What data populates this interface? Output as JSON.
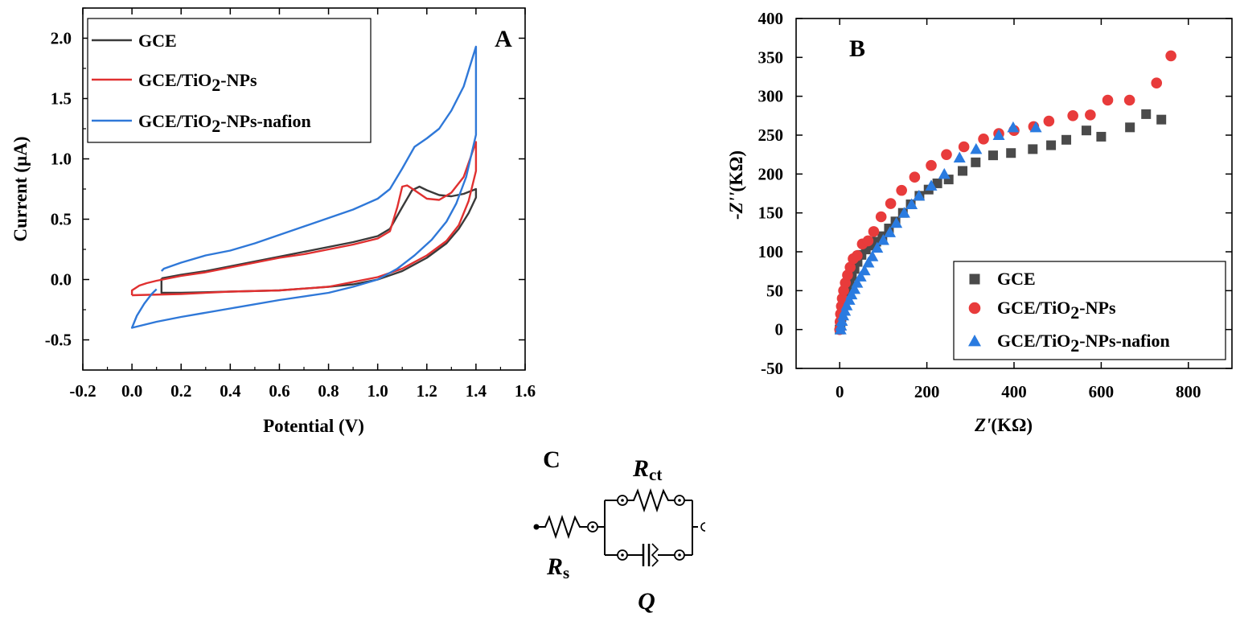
{
  "chart_data": [
    {
      "id": "A",
      "type": "line",
      "panel_label": "A",
      "xlabel": "Potential (V)",
      "ylabel": "Current (µA)",
      "xlim": [
        -0.2,
        1.6
      ],
      "ylim": [
        -0.75,
        2.25
      ],
      "xticks": [
        "-0.2",
        "0.0",
        "0.2",
        "0.4",
        "0.6",
        "0.8",
        "1.0",
        "1.2",
        "1.4",
        "1.6"
      ],
      "yticks": [
        "-0.5",
        "0.0",
        "0.5",
        "1.0",
        "1.5",
        "2.0"
      ],
      "legend_position": "top-left",
      "series": [
        {
          "name": "GCE",
          "color": "#3a3a3a",
          "points": [
            [
              0.12,
              0.01
            ],
            [
              0.2,
              0.04
            ],
            [
              0.3,
              0.07
            ],
            [
              0.4,
              0.11
            ],
            [
              0.5,
              0.15
            ],
            [
              0.6,
              0.19
            ],
            [
              0.7,
              0.23
            ],
            [
              0.8,
              0.27
            ],
            [
              0.9,
              0.31
            ],
            [
              1.0,
              0.36
            ],
            [
              1.05,
              0.42
            ],
            [
              1.1,
              0.6
            ],
            [
              1.14,
              0.74
            ],
            [
              1.17,
              0.77
            ],
            [
              1.2,
              0.74
            ],
            [
              1.25,
              0.7
            ],
            [
              1.3,
              0.69
            ],
            [
              1.35,
              0.71
            ],
            [
              1.4,
              0.75
            ],
            [
              1.4,
              0.68
            ],
            [
              1.37,
              0.55
            ],
            [
              1.33,
              0.42
            ],
            [
              1.28,
              0.3
            ],
            [
              1.2,
              0.18
            ],
            [
              1.1,
              0.07
            ],
            [
              1.0,
              0.0
            ],
            [
              0.9,
              -0.04
            ],
            [
              0.8,
              -0.06
            ],
            [
              0.6,
              -0.09
            ],
            [
              0.4,
              -0.1
            ],
            [
              0.2,
              -0.11
            ],
            [
              0.12,
              -0.11
            ],
            [
              0.12,
              0.01
            ]
          ]
        },
        {
          "name": "GCE/TiO2-NPs",
          "color": "#e03030",
          "points": [
            [
              0.0,
              -0.13
            ],
            [
              0.0,
              -0.09
            ],
            [
              0.03,
              -0.05
            ],
            [
              0.06,
              -0.03
            ],
            [
              0.1,
              -0.01
            ],
            [
              0.2,
              0.03
            ],
            [
              0.3,
              0.06
            ],
            [
              0.4,
              0.1
            ],
            [
              0.5,
              0.14
            ],
            [
              0.6,
              0.18
            ],
            [
              0.7,
              0.21
            ],
            [
              0.8,
              0.25
            ],
            [
              0.9,
              0.29
            ],
            [
              1.0,
              0.34
            ],
            [
              1.05,
              0.4
            ],
            [
              1.08,
              0.6
            ],
            [
              1.1,
              0.77
            ],
            [
              1.12,
              0.78
            ],
            [
              1.15,
              0.74
            ],
            [
              1.2,
              0.67
            ],
            [
              1.25,
              0.66
            ],
            [
              1.3,
              0.72
            ],
            [
              1.35,
              0.85
            ],
            [
              1.4,
              1.14
            ],
            [
              1.4,
              0.9
            ],
            [
              1.37,
              0.65
            ],
            [
              1.33,
              0.45
            ],
            [
              1.28,
              0.32
            ],
            [
              1.2,
              0.2
            ],
            [
              1.1,
              0.09
            ],
            [
              1.0,
              0.02
            ],
            [
              0.9,
              -0.02
            ],
            [
              0.8,
              -0.06
            ],
            [
              0.6,
              -0.09
            ],
            [
              0.4,
              -0.1
            ],
            [
              0.2,
              -0.12
            ],
            [
              0.0,
              -0.13
            ]
          ]
        },
        {
          "name": "GCE/TiO2-NPs-nafion",
          "color": "#2f78d8",
          "points": [
            [
              0.12,
              0.07
            ],
            [
              0.13,
              0.09
            ],
            [
              0.2,
              0.14
            ],
            [
              0.3,
              0.2
            ],
            [
              0.4,
              0.24
            ],
            [
              0.5,
              0.3
            ],
            [
              0.6,
              0.37
            ],
            [
              0.7,
              0.44
            ],
            [
              0.8,
              0.51
            ],
            [
              0.9,
              0.58
            ],
            [
              1.0,
              0.67
            ],
            [
              1.05,
              0.75
            ],
            [
              1.1,
              0.92
            ],
            [
              1.15,
              1.1
            ],
            [
              1.2,
              1.17
            ],
            [
              1.25,
              1.25
            ],
            [
              1.3,
              1.4
            ],
            [
              1.35,
              1.6
            ],
            [
              1.4,
              1.93
            ],
            [
              1.4,
              1.2
            ],
            [
              1.36,
              0.85
            ],
            [
              1.32,
              0.63
            ],
            [
              1.28,
              0.48
            ],
            [
              1.22,
              0.33
            ],
            [
              1.15,
              0.2
            ],
            [
              1.08,
              0.09
            ],
            [
              1.0,
              0.0
            ],
            [
              0.9,
              -0.06
            ],
            [
              0.8,
              -0.11
            ],
            [
              0.6,
              -0.17
            ],
            [
              0.4,
              -0.24
            ],
            [
              0.2,
              -0.31
            ],
            [
              0.1,
              -0.35
            ],
            [
              0.0,
              -0.4
            ],
            [
              0.02,
              -0.3
            ],
            [
              0.05,
              -0.2
            ],
            [
              0.08,
              -0.12
            ],
            [
              0.1,
              -0.08
            ]
          ]
        }
      ]
    },
    {
      "id": "B",
      "type": "scatter",
      "panel_label": "B",
      "xlabel": "Z'(KΩ)",
      "ylabel": "-Z''(KΩ)",
      "xlim": [
        -100,
        900
      ],
      "ylim": [
        -50,
        400
      ],
      "xticks": [
        "0",
        "200",
        "400",
        "600",
        "800"
      ],
      "yticks": [
        "-50",
        "0",
        "50",
        "100",
        "150",
        "200",
        "250",
        "300",
        "350",
        "400"
      ],
      "legend_position": "bottom-right",
      "series": [
        {
          "name": "GCE",
          "marker": "square",
          "color": "#4a4a4a",
          "points": [
            [
              0,
              0
            ],
            [
              2,
              8
            ],
            [
              4,
              16
            ],
            [
              7,
              24
            ],
            [
              10,
              33
            ],
            [
              14,
              42
            ],
            [
              18,
              51
            ],
            [
              23,
              60
            ],
            [
              28,
              69
            ],
            [
              34,
              78
            ],
            [
              41,
              87
            ],
            [
              50,
              96
            ],
            [
              60,
              103
            ],
            [
              72,
              108
            ],
            [
              84,
              113
            ],
            [
              98,
              120
            ],
            [
              113,
              130
            ],
            [
              128,
              139
            ],
            [
              145,
              150
            ],
            [
              163,
              161
            ],
            [
              183,
              172
            ],
            [
              204,
              180
            ],
            [
              224,
              188
            ],
            [
              250,
              193
            ],
            [
              282,
              204
            ],
            [
              312,
              215
            ],
            [
              352,
              224
            ],
            [
              393,
              227
            ],
            [
              443,
              232
            ],
            [
              485,
              237
            ],
            [
              520,
              244
            ],
            [
              566,
              256
            ],
            [
              600,
              248
            ],
            [
              666,
              260
            ],
            [
              703,
              277
            ],
            [
              738,
              270
            ]
          ]
        },
        {
          "name": "GCE/TiO2-NPs",
          "marker": "circle",
          "color": "#e83b3b",
          "points": [
            [
              0,
              0
            ],
            [
              1,
              10
            ],
            [
              2,
              20
            ],
            [
              4,
              30
            ],
            [
              6,
              40
            ],
            [
              9,
              50
            ],
            [
              13,
              60
            ],
            [
              18,
              70
            ],
            [
              24,
              80
            ],
            [
              31,
              91
            ],
            [
              40,
              95
            ],
            [
              52,
              110
            ],
            [
              65,
              114
            ],
            [
              78,
              126
            ],
            [
              95,
              145
            ],
            [
              117,
              162
            ],
            [
              142,
              179
            ],
            [
              172,
              196
            ],
            [
              210,
              211
            ],
            [
              245,
              225
            ],
            [
              285,
              235
            ],
            [
              330,
              245
            ],
            [
              365,
              252
            ],
            [
              400,
              256
            ],
            [
              445,
              261
            ],
            [
              480,
              268
            ],
            [
              535,
              275
            ],
            [
              575,
              276
            ],
            [
              615,
              295
            ],
            [
              665,
              295
            ],
            [
              727,
              317
            ],
            [
              760,
              352
            ]
          ]
        },
        {
          "name": "GCE/TiO2-NPs-nafion",
          "marker": "triangle",
          "color": "#2a7be0",
          "points": [
            [
              2,
              0
            ],
            [
              3,
              5
            ],
            [
              5,
              11
            ],
            [
              8,
              18
            ],
            [
              12,
              24
            ],
            [
              16,
              31
            ],
            [
              22,
              38
            ],
            [
              27,
              45
            ],
            [
              34,
              52
            ],
            [
              40,
              60
            ],
            [
              48,
              68
            ],
            [
              57,
              76
            ],
            [
              66,
              86
            ],
            [
              75,
              94
            ],
            [
              86,
              105
            ],
            [
              100,
              115
            ],
            [
              115,
              125
            ],
            [
              130,
              137
            ],
            [
              148,
              150
            ],
            [
              165,
              161
            ],
            [
              182,
              172
            ],
            [
              210,
              185
            ],
            [
              240,
              200
            ],
            [
              275,
              221
            ],
            [
              313,
              232
            ],
            [
              365,
              250
            ],
            [
              398,
              260
            ],
            [
              450,
              260
            ]
          ]
        }
      ]
    }
  ],
  "circuit": {
    "panel_label": "C",
    "rs_main": "R",
    "rs_sub": "s",
    "rct_main": "R",
    "rct_sub": "ct",
    "q_label": "Q"
  }
}
